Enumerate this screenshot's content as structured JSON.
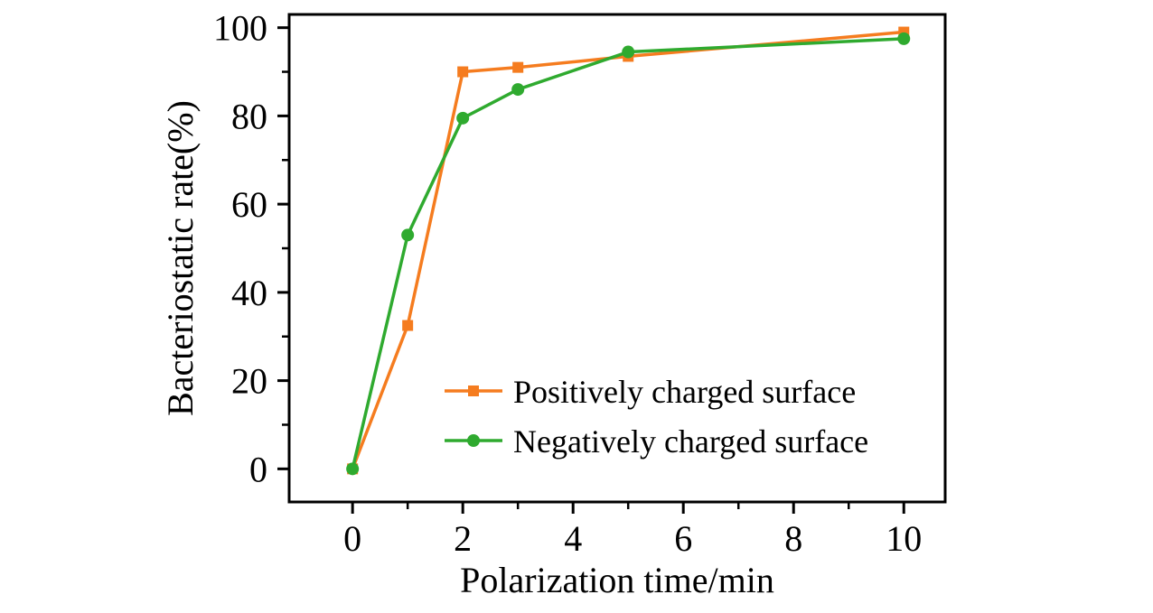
{
  "chart_data": {
    "type": "line",
    "title": "",
    "xlabel": "Polarization time/min",
    "ylabel": "Bacteriostatic rate(%)",
    "xlim": [
      -1.15,
      10.75
    ],
    "ylim": [
      -7.5,
      103
    ],
    "x_ticks": [
      0,
      2,
      4,
      6,
      8,
      10
    ],
    "y_ticks": [
      0,
      20,
      40,
      60,
      80,
      100
    ],
    "x_minor_ticks": [
      1,
      3,
      5,
      7,
      9
    ],
    "y_minor_ticks": [
      10,
      30,
      50,
      70,
      90
    ],
    "grid": false,
    "legend_position": "inside-lower-right",
    "axis_color": "#000000",
    "background_color": "#ffffff",
    "x": [
      0,
      1,
      2,
      3,
      5,
      10
    ],
    "series": [
      {
        "name": "Positively charged surface",
        "color": "#f57c1f",
        "marker": "square",
        "values": [
          0,
          32.5,
          90,
          91,
          93.5,
          99
        ]
      },
      {
        "name": "Negatively charged surface",
        "color": "#2faa2f",
        "marker": "circle",
        "values": [
          0,
          53,
          79.5,
          86,
          94.5,
          97.5
        ]
      }
    ]
  }
}
